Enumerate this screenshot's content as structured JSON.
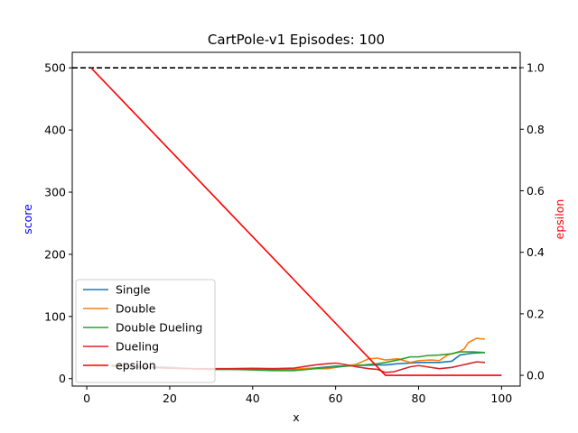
{
  "chart_data": {
    "type": "line",
    "title": "CartPole-v1 Episodes: 100",
    "xlabel": "x",
    "ylabel_left": "score",
    "ylabel_right": "epsilon",
    "xlim": [
      -3.5,
      104.5
    ],
    "ylim_left": [
      -12,
      525
    ],
    "ylim_right": [
      -0.035,
      1.05
    ],
    "xticks": [
      0,
      20,
      40,
      60,
      80,
      100
    ],
    "yticks_left": [
      0,
      100,
      200,
      300,
      400,
      500
    ],
    "yticks_right": [
      0.0,
      0.2,
      0.4,
      0.6,
      0.8,
      1.0
    ],
    "yticklabels_right": [
      "0.0",
      "0.2",
      "0.4",
      "0.6",
      "0.8",
      "1.0"
    ],
    "reference_line": {
      "axis": "left",
      "y": 500,
      "style": "dashed",
      "color": "#000000"
    },
    "grid": false,
    "legend_placement": "lower-left",
    "series": [
      {
        "name": "Single",
        "axis": "left",
        "color": "#1f77b4",
        "x": [
          6,
          10,
          15,
          20,
          25,
          30,
          35,
          40,
          45,
          50,
          55,
          60,
          65,
          70,
          72,
          75,
          78,
          80,
          85,
          88,
          90,
          93,
          96
        ],
        "y": [
          22,
          21,
          19,
          18,
          16,
          15,
          15,
          16,
          15,
          15,
          17,
          20,
          21,
          22,
          22,
          24,
          25,
          26,
          26,
          28,
          38,
          41,
          42
        ]
      },
      {
        "name": "Double",
        "axis": "left",
        "color": "#ff7f0e",
        "x": [
          6,
          10,
          15,
          20,
          25,
          30,
          35,
          40,
          45,
          50,
          55,
          58,
          62,
          65,
          68,
          70,
          72,
          75,
          78,
          80,
          83,
          85,
          87,
          90,
          91,
          92,
          94,
          95,
          96
        ],
        "y": [
          22,
          20,
          18,
          17,
          16,
          15,
          16,
          17,
          16,
          16,
          16,
          16,
          20,
          23,
          32,
          33,
          30,
          32,
          26,
          29,
          30,
          29,
          38,
          44,
          48,
          58,
          65,
          64,
          64
        ]
      },
      {
        "name": "Double Dueling",
        "axis": "left",
        "color": "#2ca02c",
        "x": [
          6,
          10,
          15,
          20,
          25,
          30,
          35,
          40,
          45,
          50,
          55,
          60,
          65,
          70,
          72,
          75,
          78,
          80,
          82,
          85,
          88,
          90,
          93,
          96
        ],
        "y": [
          21,
          20,
          18,
          17,
          16,
          15,
          15,
          14,
          13,
          13,
          16,
          19,
          21,
          24,
          26,
          30,
          35,
          35,
          37,
          38,
          40,
          43,
          43,
          42
        ]
      },
      {
        "name": "Dueling",
        "axis": "left",
        "color": "#d62728",
        "x": [
          6,
          10,
          15,
          20,
          25,
          30,
          35,
          40,
          45,
          50,
          53,
          55,
          58,
          60,
          62,
          65,
          68,
          70,
          72,
          74,
          76,
          78,
          80,
          82,
          85,
          88,
          90,
          92,
          94,
          96
        ],
        "y": [
          20,
          19,
          18,
          17,
          16,
          16,
          16,
          16,
          16,
          17,
          20,
          22,
          24,
          25,
          23,
          19,
          16,
          15,
          10,
          11,
          15,
          19,
          21,
          19,
          16,
          18,
          21,
          24,
          27,
          26
        ]
      },
      {
        "name": "epsilon",
        "axis": "right",
        "color": "#ff0000",
        "x": [
          1,
          72,
          100
        ],
        "y": [
          1.0,
          0.0,
          0.0
        ]
      }
    ]
  }
}
